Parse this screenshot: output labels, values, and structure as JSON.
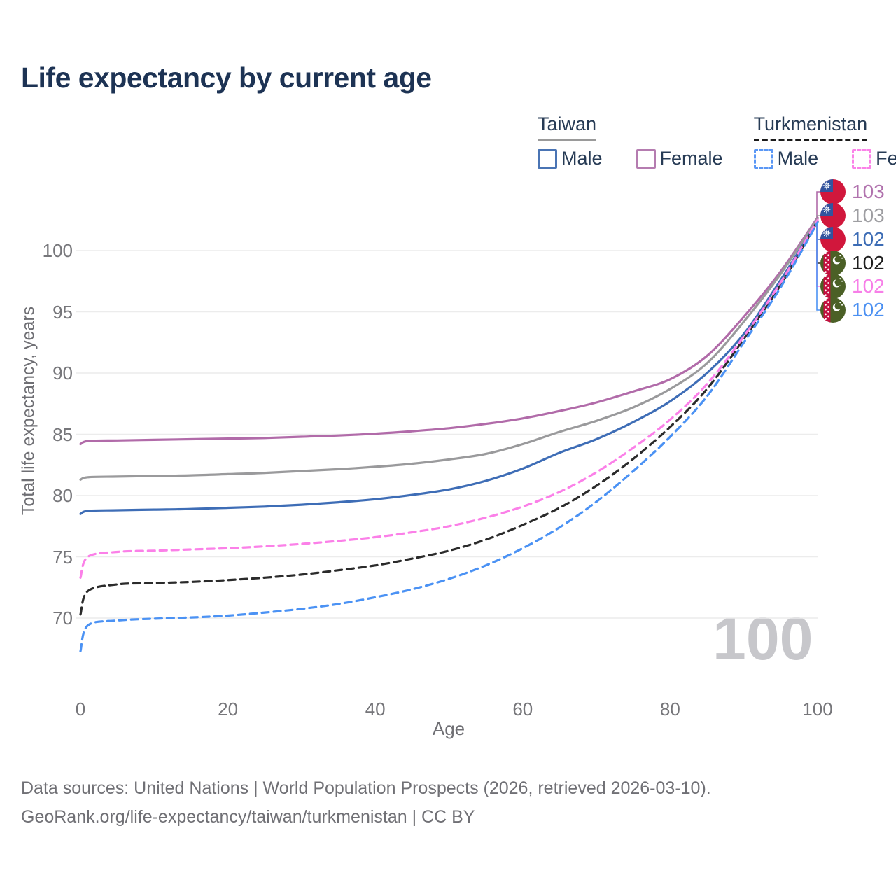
{
  "title": "Life expectancy by current age",
  "legend": {
    "taiwan": {
      "label": "Taiwan",
      "male_label": "Male",
      "female_label": "Female"
    },
    "turkmenistan": {
      "label": "Turkmenistan",
      "male_label": "Male",
      "female_label": "Female"
    }
  },
  "colors": {
    "taiwan_female": "#b16ba9",
    "taiwan_both": "#9a9a9c",
    "taiwan_male": "#3e6db6",
    "turkmenistan_female": "#fb80e8",
    "turkmenistan_both": "#2b2b2b",
    "turkmenistan_male": "#4b92f4",
    "grid": "#ececec",
    "title_text": "#1d3354",
    "axis_text": "#76767a",
    "watermark_text": "#c7c7cb"
  },
  "end_labels": [
    {
      "value": "103",
      "flag": "taiwan",
      "series": "Taiwan Female",
      "color": "#b173ae"
    },
    {
      "value": "103",
      "flag": "taiwan",
      "series": "Taiwan Both sexes",
      "color": "#9e9ea2"
    },
    {
      "value": "102",
      "flag": "taiwan",
      "series": "Taiwan Male",
      "color": "#3c6cb5"
    },
    {
      "value": "102",
      "flag": "turkmenistan",
      "series": "Turkmenistan Both sexes",
      "color": "#1f1f1f"
    },
    {
      "value": "102",
      "flag": "turkmenistan",
      "series": "Turkmenistan Female",
      "color": "#f77fe8"
    },
    {
      "value": "102",
      "flag": "turkmenistan",
      "series": "Turkmenistan Male",
      "color": "#4b90f2"
    }
  ],
  "watermark": {
    "text": "100"
  },
  "footer": {
    "line1": "Data sources: United Nations | World Population Prospects (2026, retrieved 2026-03-10).",
    "line2": "GeoRank.org/life-expectancy/taiwan/turkmenistan | CC BY"
  },
  "chart_data": {
    "type": "line",
    "title": "Life expectancy by current age",
    "xlabel": "Age",
    "ylabel": "Total life expectancy, years",
    "xlim": [
      0,
      100
    ],
    "ylim": [
      66,
      104
    ],
    "xticks": [
      0,
      20,
      40,
      60,
      80,
      100
    ],
    "yticks": [
      70,
      75,
      80,
      85,
      90,
      95,
      100
    ],
    "grid": "horizontal-only",
    "legend_position": "top-right",
    "series": [
      {
        "name": "Taiwan Female",
        "country": "Taiwan",
        "sex": "Female",
        "dash": "solid",
        "color": "#b16ba9",
        "end_label": "103",
        "label_slot": 0,
        "points": [
          [
            0,
            84.2
          ],
          [
            1,
            84.45
          ],
          [
            5,
            84.5
          ],
          [
            10,
            84.55
          ],
          [
            15,
            84.6
          ],
          [
            20,
            84.65
          ],
          [
            25,
            84.7
          ],
          [
            30,
            84.8
          ],
          [
            35,
            84.9
          ],
          [
            40,
            85.05
          ],
          [
            45,
            85.25
          ],
          [
            50,
            85.5
          ],
          [
            55,
            85.85
          ],
          [
            60,
            86.3
          ],
          [
            65,
            86.9
          ],
          [
            70,
            87.6
          ],
          [
            75,
            88.5
          ],
          [
            80,
            89.5
          ],
          [
            85,
            91.4
          ],
          [
            90,
            94.6
          ],
          [
            95,
            98.3
          ],
          [
            100,
            102.7
          ]
        ]
      },
      {
        "name": "Taiwan Both sexes",
        "country": "Taiwan",
        "sex": "Both",
        "dash": "solid",
        "color": "#9a9a9c",
        "end_label": "103",
        "label_slot": 1,
        "points": [
          [
            0,
            81.3
          ],
          [
            1,
            81.5
          ],
          [
            5,
            81.55
          ],
          [
            10,
            81.6
          ],
          [
            15,
            81.65
          ],
          [
            20,
            81.75
          ],
          [
            25,
            81.85
          ],
          [
            30,
            82.0
          ],
          [
            35,
            82.15
          ],
          [
            40,
            82.35
          ],
          [
            45,
            82.6
          ],
          [
            50,
            82.95
          ],
          [
            55,
            83.4
          ],
          [
            60,
            84.2
          ],
          [
            65,
            85.2
          ],
          [
            70,
            86.1
          ],
          [
            75,
            87.2
          ],
          [
            80,
            88.7
          ],
          [
            85,
            90.8
          ],
          [
            90,
            94.2
          ],
          [
            95,
            98.1
          ],
          [
            100,
            102.6
          ]
        ]
      },
      {
        "name": "Taiwan Male",
        "country": "Taiwan",
        "sex": "Male",
        "dash": "solid",
        "color": "#3e6db6",
        "end_label": "102",
        "label_slot": 2,
        "points": [
          [
            0,
            78.5
          ],
          [
            1,
            78.75
          ],
          [
            5,
            78.8
          ],
          [
            10,
            78.85
          ],
          [
            15,
            78.9
          ],
          [
            20,
            79.0
          ],
          [
            25,
            79.1
          ],
          [
            30,
            79.25
          ],
          [
            35,
            79.45
          ],
          [
            40,
            79.7
          ],
          [
            45,
            80.05
          ],
          [
            50,
            80.5
          ],
          [
            55,
            81.2
          ],
          [
            60,
            82.2
          ],
          [
            65,
            83.5
          ],
          [
            70,
            84.6
          ],
          [
            75,
            86.0
          ],
          [
            80,
            87.7
          ],
          [
            85,
            90.0
          ],
          [
            90,
            93.2
          ],
          [
            95,
            97.6
          ],
          [
            100,
            102.4
          ]
        ]
      },
      {
        "name": "Turkmenistan Both sexes",
        "country": "Turkmenistan",
        "sex": "Both",
        "dash": "dashed",
        "color": "#2b2b2b",
        "end_label": "102",
        "label_slot": 3,
        "points": [
          [
            0,
            70.3
          ],
          [
            1,
            72.2
          ],
          [
            5,
            72.75
          ],
          [
            10,
            72.85
          ],
          [
            15,
            72.95
          ],
          [
            20,
            73.1
          ],
          [
            25,
            73.3
          ],
          [
            30,
            73.55
          ],
          [
            35,
            73.9
          ],
          [
            40,
            74.3
          ],
          [
            45,
            74.85
          ],
          [
            50,
            75.5
          ],
          [
            55,
            76.4
          ],
          [
            60,
            77.6
          ],
          [
            65,
            79.0
          ],
          [
            70,
            80.8
          ],
          [
            75,
            83.0
          ],
          [
            80,
            85.6
          ],
          [
            85,
            88.7
          ],
          [
            90,
            92.8
          ],
          [
            95,
            97.2
          ],
          [
            100,
            102.4
          ]
        ]
      },
      {
        "name": "Turkmenistan Female",
        "country": "Turkmenistan",
        "sex": "Female",
        "dash": "dashed",
        "color": "#fb80e8",
        "end_label": "102",
        "label_slot": 4,
        "points": [
          [
            0,
            73.3
          ],
          [
            1,
            75.0
          ],
          [
            5,
            75.4
          ],
          [
            10,
            75.5
          ],
          [
            15,
            75.6
          ],
          [
            20,
            75.7
          ],
          [
            25,
            75.85
          ],
          [
            30,
            76.05
          ],
          [
            35,
            76.3
          ],
          [
            40,
            76.6
          ],
          [
            45,
            77.0
          ],
          [
            50,
            77.5
          ],
          [
            55,
            78.2
          ],
          [
            60,
            79.1
          ],
          [
            65,
            80.3
          ],
          [
            70,
            81.9
          ],
          [
            75,
            83.9
          ],
          [
            80,
            86.2
          ],
          [
            85,
            89.1
          ],
          [
            90,
            93.0
          ],
          [
            95,
            97.4
          ],
          [
            100,
            102.5
          ]
        ]
      },
      {
        "name": "Turkmenistan Male",
        "country": "Turkmenistan",
        "sex": "Male",
        "dash": "dashed",
        "color": "#4b92f4",
        "end_label": "102",
        "label_slot": 5,
        "points": [
          [
            0,
            67.3
          ],
          [
            1,
            69.4
          ],
          [
            5,
            69.8
          ],
          [
            10,
            69.95
          ],
          [
            15,
            70.05
          ],
          [
            20,
            70.2
          ],
          [
            25,
            70.45
          ],
          [
            30,
            70.75
          ],
          [
            35,
            71.15
          ],
          [
            40,
            71.7
          ],
          [
            45,
            72.35
          ],
          [
            50,
            73.2
          ],
          [
            55,
            74.3
          ],
          [
            60,
            75.7
          ],
          [
            65,
            77.4
          ],
          [
            70,
            79.5
          ],
          [
            75,
            82.0
          ],
          [
            80,
            84.8
          ],
          [
            85,
            88.1
          ],
          [
            90,
            92.5
          ],
          [
            95,
            97.0
          ],
          [
            100,
            102.3
          ]
        ]
      }
    ]
  }
}
